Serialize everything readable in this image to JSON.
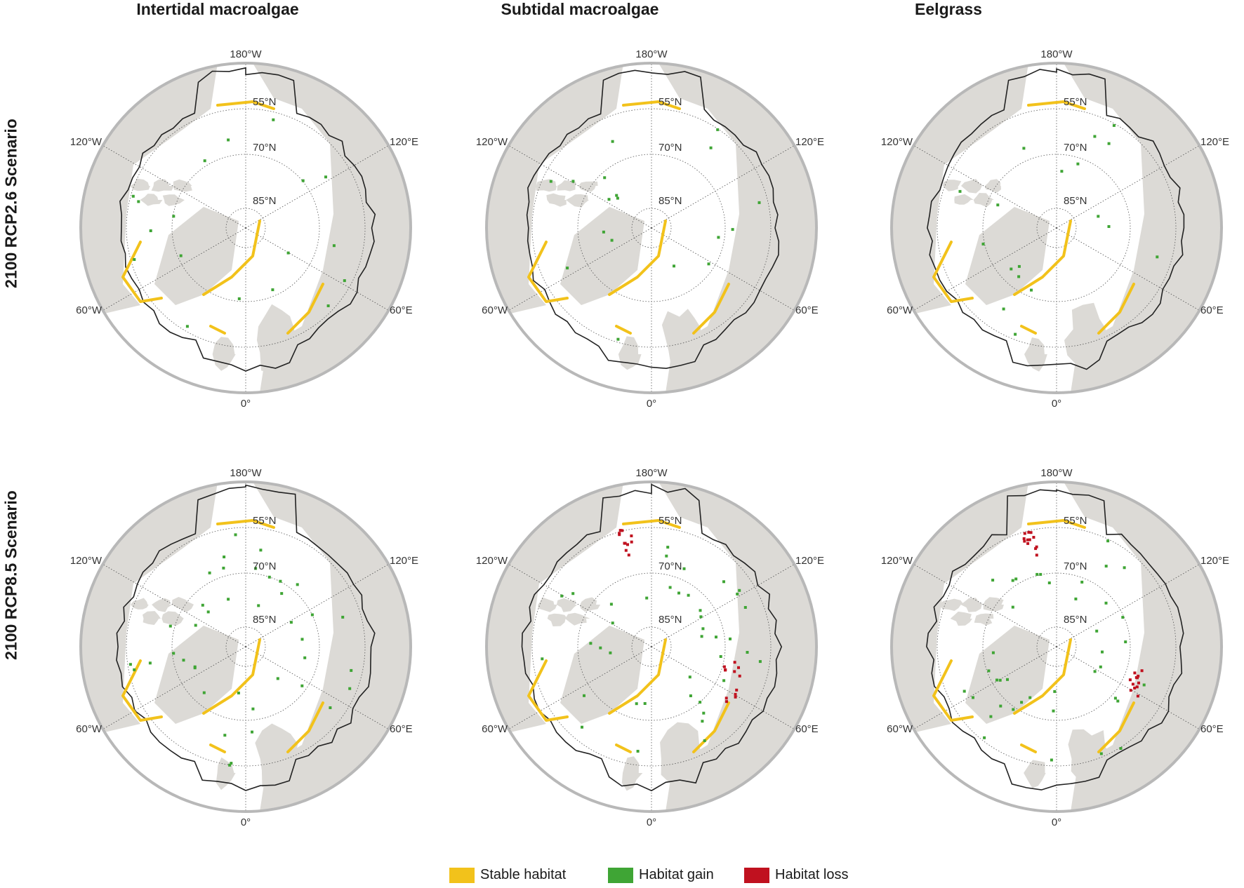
{
  "columns": [
    "Intertidal macroalgae",
    "Subtidal macroalgae",
    "Eelgrass"
  ],
  "rows": [
    "2100 RCP2.6 Scenario",
    "2100 RCP8.5 Scenario"
  ],
  "map_labels": {
    "lon_180": "180°W",
    "lon_120w": "120°W",
    "lon_120e": "120°E",
    "lon_60w": "60°W",
    "lon_60e": "60°E",
    "lon_0": "0°",
    "lat_55": "55°N",
    "lat_70": "70°N",
    "lat_85": "85°N"
  },
  "legend": [
    {
      "label": "Stable habitat",
      "color": "#f2c21b"
    },
    {
      "label": "Habitat gain",
      "color": "#3fa535"
    },
    {
      "label": "Habitat loss",
      "color": "#c0111f"
    }
  ],
  "colors": {
    "land": "#dcdad6",
    "ocean": "#ffffff",
    "ring": "#b8b8b8",
    "boundary": "#222222"
  }
}
